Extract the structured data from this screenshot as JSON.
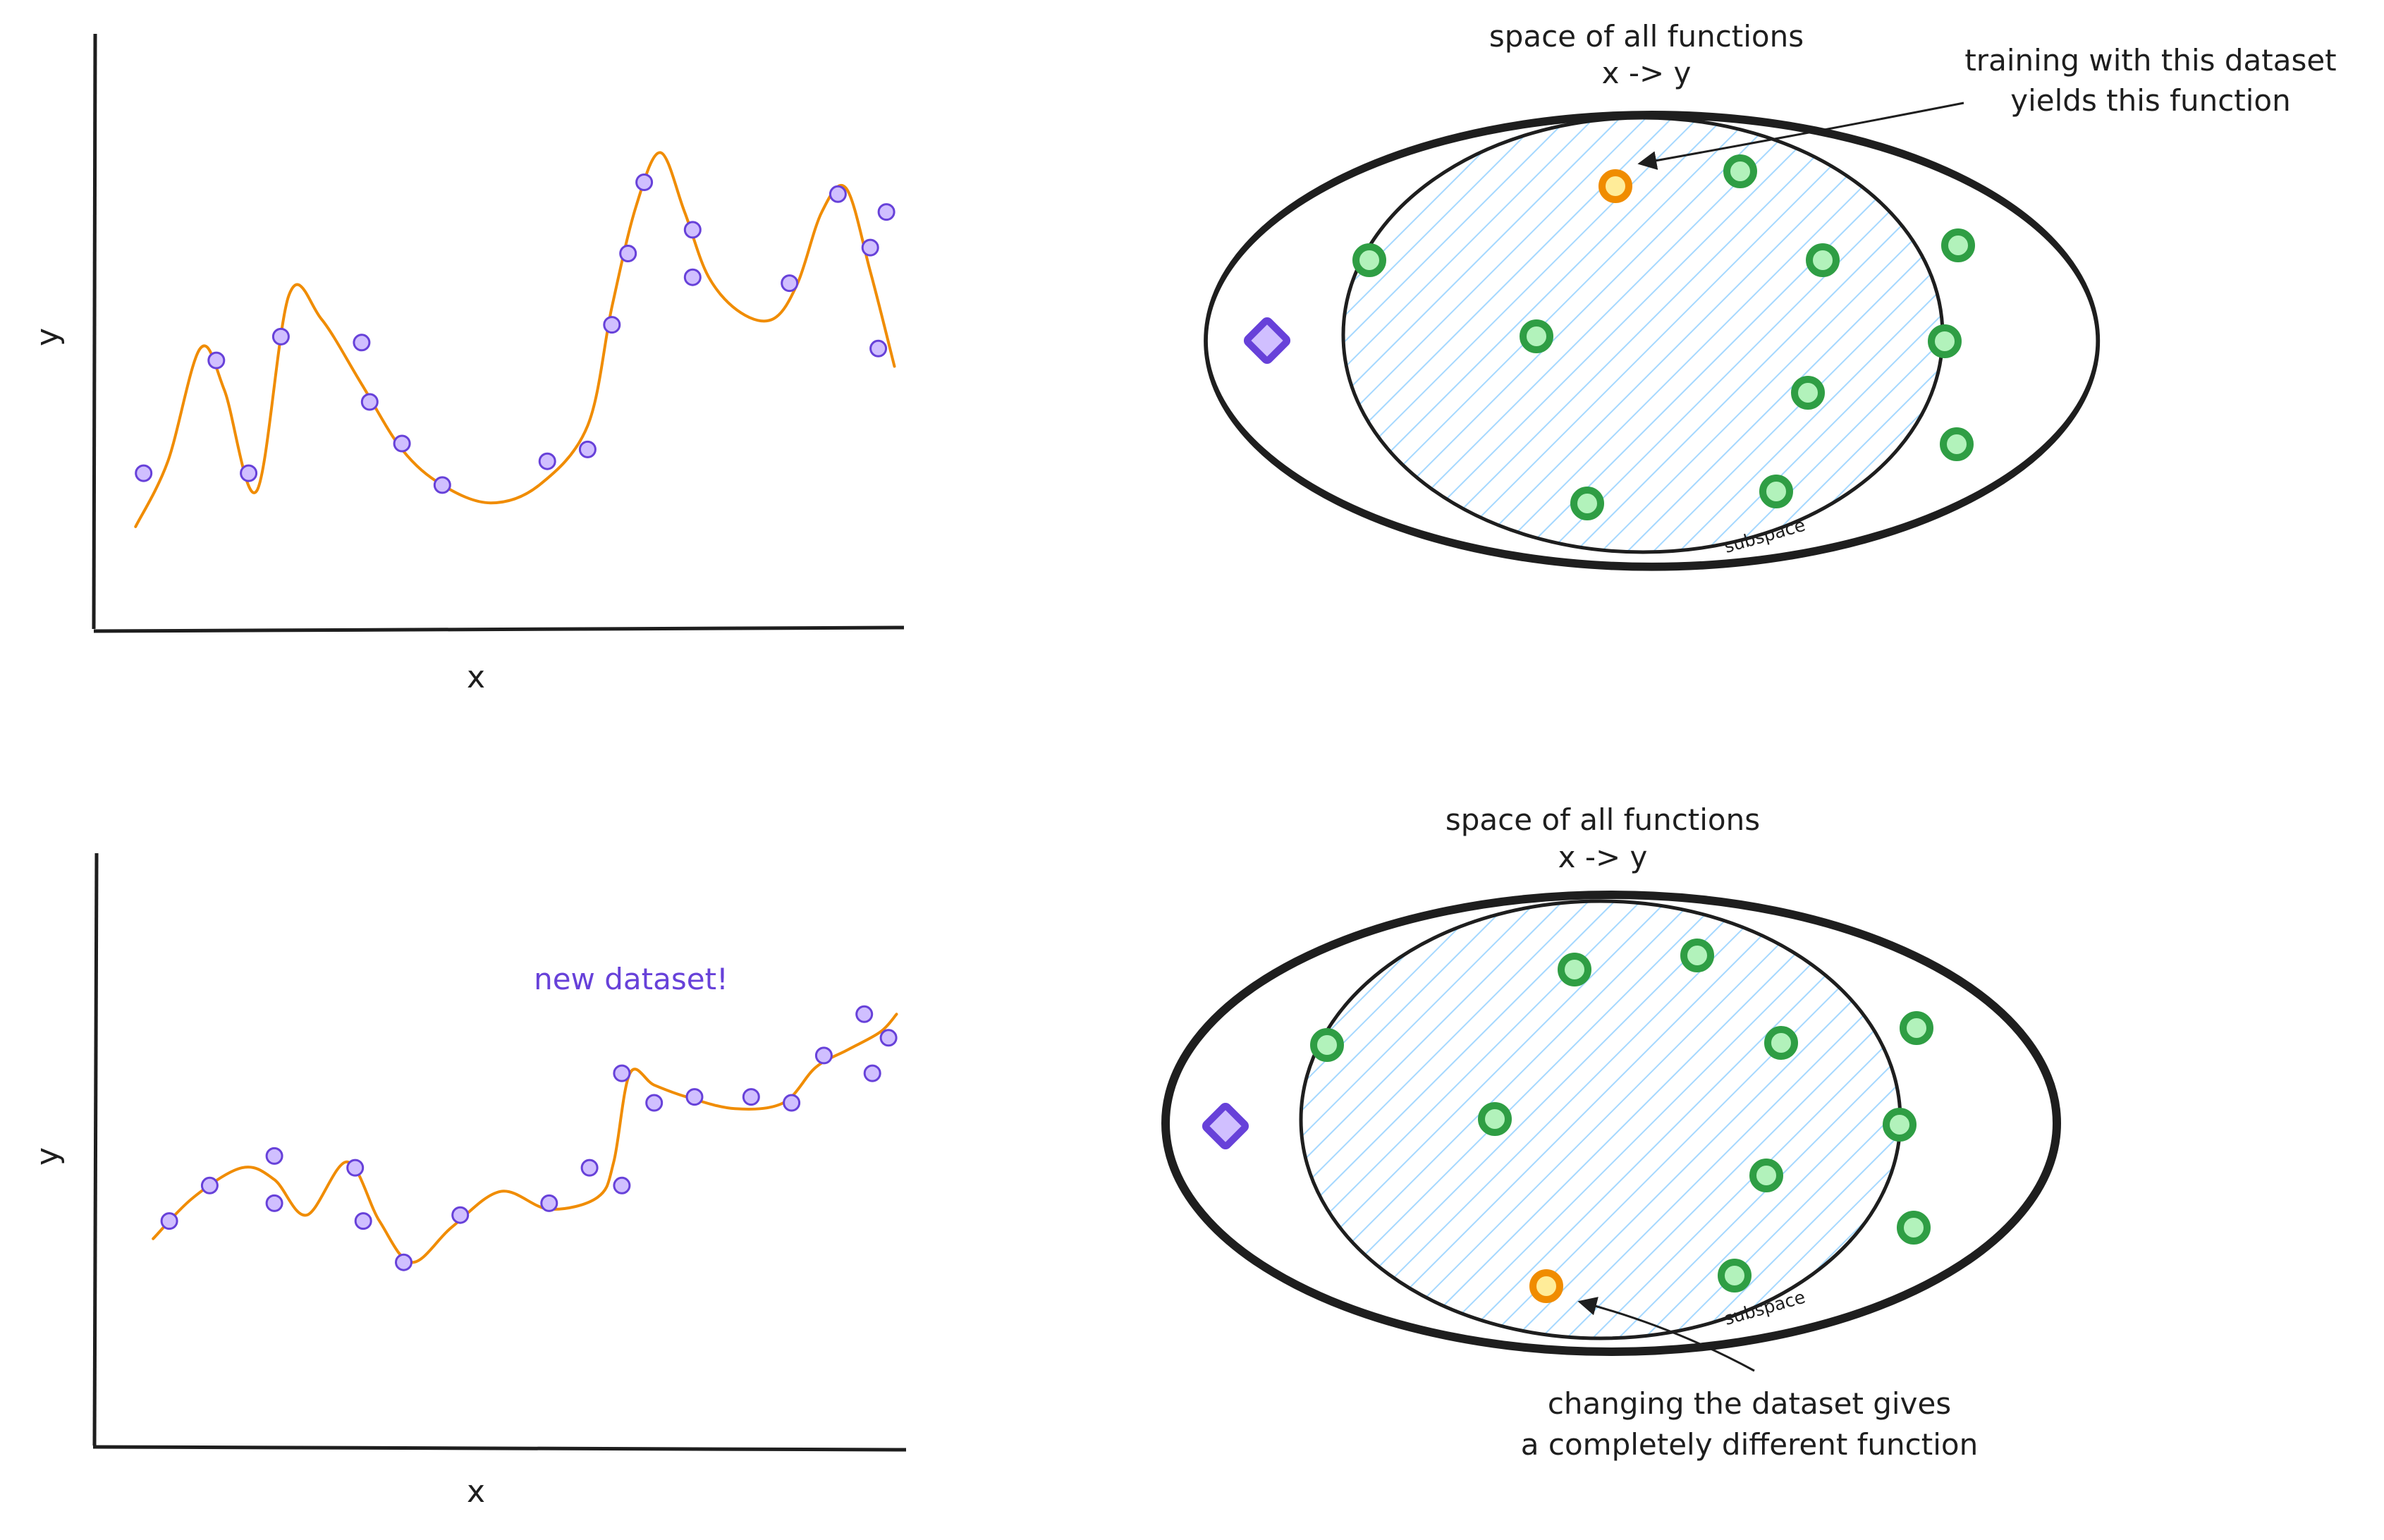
{
  "colors": {
    "curve": "#f08c00",
    "point_fill": "#d0bfff",
    "point_stroke": "#6741d9",
    "green_fill": "#b2f2bb",
    "green_stroke": "#2f9e44",
    "orange_fill": "#ffec99",
    "orange_stroke": "#f08c00",
    "hatch": "#a5d8ff",
    "ink": "#1e1e1e",
    "accent_text": "#6741d9"
  },
  "panels": [
    {
      "id": "top",
      "xlabel": "x",
      "ylabel": "y",
      "note": "",
      "points": [
        [
          0.06,
          0.26
        ],
        [
          0.15,
          0.45
        ],
        [
          0.19,
          0.26
        ],
        [
          0.23,
          0.49
        ],
        [
          0.33,
          0.48
        ],
        [
          0.34,
          0.38
        ],
        [
          0.38,
          0.31
        ],
        [
          0.43,
          0.24
        ],
        [
          0.56,
          0.28
        ],
        [
          0.61,
          0.3
        ],
        [
          0.64,
          0.51
        ],
        [
          0.66,
          0.63
        ],
        [
          0.68,
          0.75
        ],
        [
          0.74,
          0.67
        ],
        [
          0.74,
          0.59
        ],
        [
          0.86,
          0.58
        ],
        [
          0.92,
          0.73
        ],
        [
          0.96,
          0.64
        ],
        [
          0.98,
          0.7
        ],
        [
          0.97,
          0.47
        ]
      ],
      "curve": [
        [
          0.05,
          0.17
        ],
        [
          0.09,
          0.28
        ],
        [
          0.13,
          0.47
        ],
        [
          0.16,
          0.4
        ],
        [
          0.2,
          0.23
        ],
        [
          0.24,
          0.56
        ],
        [
          0.28,
          0.52
        ],
        [
          0.33,
          0.41
        ],
        [
          0.38,
          0.3
        ],
        [
          0.43,
          0.24
        ],
        [
          0.49,
          0.21
        ],
        [
          0.55,
          0.24
        ],
        [
          0.61,
          0.34
        ],
        [
          0.64,
          0.54
        ],
        [
          0.67,
          0.71
        ],
        [
          0.7,
          0.8
        ],
        [
          0.73,
          0.7
        ],
        [
          0.76,
          0.59
        ],
        [
          0.8,
          0.53
        ],
        [
          0.84,
          0.52
        ],
        [
          0.87,
          0.58
        ],
        [
          0.9,
          0.7
        ],
        [
          0.93,
          0.74
        ],
        [
          0.96,
          0.6
        ],
        [
          0.99,
          0.44
        ]
      ]
    },
    {
      "id": "bottom",
      "xlabel": "x",
      "ylabel": "y",
      "note": "new dataset!",
      "points": [
        [
          0.09,
          0.38
        ],
        [
          0.14,
          0.44
        ],
        [
          0.22,
          0.41
        ],
        [
          0.22,
          0.49
        ],
        [
          0.32,
          0.47
        ],
        [
          0.33,
          0.38
        ],
        [
          0.38,
          0.31
        ],
        [
          0.45,
          0.39
        ],
        [
          0.56,
          0.41
        ],
        [
          0.61,
          0.47
        ],
        [
          0.65,
          0.44
        ],
        [
          0.65,
          0.63
        ],
        [
          0.69,
          0.58
        ],
        [
          0.74,
          0.59
        ],
        [
          0.81,
          0.59
        ],
        [
          0.86,
          0.58
        ],
        [
          0.9,
          0.66
        ],
        [
          0.95,
          0.73
        ],
        [
          0.96,
          0.63
        ],
        [
          0.98,
          0.69
        ]
      ],
      "curve": [
        [
          0.07,
          0.35
        ],
        [
          0.12,
          0.42
        ],
        [
          0.18,
          0.47
        ],
        [
          0.22,
          0.45
        ],
        [
          0.26,
          0.39
        ],
        [
          0.31,
          0.48
        ],
        [
          0.35,
          0.38
        ],
        [
          0.39,
          0.31
        ],
        [
          0.44,
          0.37
        ],
        [
          0.5,
          0.43
        ],
        [
          0.56,
          0.4
        ],
        [
          0.62,
          0.42
        ],
        [
          0.64,
          0.48
        ],
        [
          0.66,
          0.63
        ],
        [
          0.69,
          0.61
        ],
        [
          0.73,
          0.59
        ],
        [
          0.79,
          0.57
        ],
        [
          0.85,
          0.58
        ],
        [
          0.89,
          0.64
        ],
        [
          0.93,
          0.67
        ],
        [
          0.97,
          0.7
        ],
        [
          0.99,
          0.73
        ]
      ]
    }
  ],
  "diagrams": [
    {
      "id": "top",
      "title_line1": "space of all functions",
      "title_line2": "x -> y",
      "subspace_label": "subspace",
      "callout_line1": "training with this dataset",
      "callout_line2": "yields this function",
      "selected_index": 0
    },
    {
      "id": "bottom",
      "title_line1": "space of all functions",
      "title_line2": "x -> y",
      "subspace_label": "subspace",
      "callout_line1": "changing the dataset gives",
      "callout_line2": "a completely different function",
      "selected_index": 1
    }
  ]
}
